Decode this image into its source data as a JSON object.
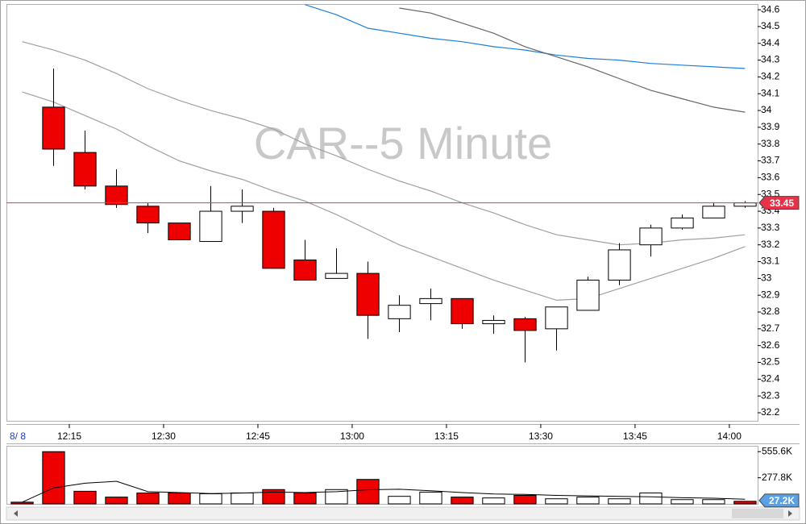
{
  "chart_data": {
    "type": "candlestick",
    "title": "CAR--5 Minute",
    "date_label": "8/ 8",
    "x": [
      725,
      730,
      735,
      740,
      745,
      750,
      755,
      760,
      765,
      770,
      775,
      780,
      785,
      790,
      795,
      800,
      805,
      810,
      815,
      820,
      825,
      830,
      835,
      840
    ],
    "xlim": [
      725,
      844.5
    ],
    "xticks": [
      {
        "value": 735,
        "label": "12:15"
      },
      {
        "value": 750,
        "label": "12:30"
      },
      {
        "value": 765,
        "label": "12:45"
      },
      {
        "value": 780,
        "label": "13:00"
      },
      {
        "value": 795,
        "label": "13:15"
      },
      {
        "value": 810,
        "label": "13:30"
      },
      {
        "value": 825,
        "label": "13:45"
      },
      {
        "value": 840,
        "label": "14:00"
      }
    ],
    "open": [
      null,
      34.02,
      33.75,
      33.55,
      33.43,
      33.33,
      33.22,
      33.4,
      33.4,
      33.11,
      33.0,
      33.03,
      32.76,
      32.85,
      32.88,
      32.73,
      32.76,
      32.7,
      32.81,
      32.99,
      33.2,
      33.3,
      33.36,
      33.43
    ],
    "high": [
      null,
      34.25,
      33.88,
      33.65,
      33.45,
      33.33,
      33.55,
      33.53,
      33.42,
      33.23,
      33.18,
      33.1,
      32.9,
      32.94,
      32.88,
      32.78,
      32.77,
      32.83,
      33.01,
      33.21,
      33.32,
      33.38,
      33.45,
      33.46
    ],
    "low": [
      null,
      33.67,
      33.53,
      33.42,
      33.27,
      33.23,
      33.22,
      33.33,
      33.06,
      32.99,
      33.0,
      32.64,
      32.68,
      32.75,
      32.7,
      32.67,
      32.5,
      32.57,
      32.81,
      32.96,
      33.13,
      33.29,
      33.36,
      33.42
    ],
    "close": [
      null,
      33.77,
      33.55,
      33.44,
      33.33,
      33.23,
      33.4,
      33.43,
      33.06,
      32.99,
      33.03,
      32.78,
      32.84,
      32.88,
      32.73,
      32.75,
      32.69,
      32.83,
      32.99,
      33.17,
      33.3,
      33.36,
      33.43,
      33.45
    ],
    "up_color": "#ffffff",
    "down_color": "#ee0000",
    "ylim": [
      32.152,
      34.634
    ],
    "yticks": [
      32.2,
      32.3,
      32.4,
      32.5,
      32.6,
      32.7,
      32.8,
      32.9,
      33,
      33.1,
      33.2,
      33.3,
      33.4,
      33.5,
      33.6,
      33.7,
      33.8,
      33.9,
      34,
      34.1,
      34.2,
      34.3,
      34.4,
      34.5,
      34.6
    ],
    "last_price": 33.45,
    "last_price_color": "#e8324a",
    "overlays": [
      {
        "color": "#1e7fd8",
        "values": [
          null,
          null,
          null,
          null,
          null,
          null,
          null,
          null,
          null,
          34.63,
          34.57,
          34.49,
          34.46,
          34.43,
          34.41,
          34.38,
          34.36,
          34.33,
          34.31,
          34.3,
          34.28,
          34.27,
          34.26,
          34.25
        ]
      },
      {
        "color": "#666666",
        "values": [
          null,
          null,
          null,
          null,
          null,
          null,
          null,
          null,
          null,
          null,
          null,
          null,
          34.61,
          34.58,
          34.52,
          34.46,
          34.38,
          34.32,
          34.26,
          34.19,
          34.12,
          34.07,
          34.02,
          33.99
        ]
      },
      {
        "color": "#a0a0a0",
        "values": [
          34.41,
          34.36,
          34.3,
          34.22,
          34.13,
          34.06,
          34.0,
          33.95,
          33.89,
          33.8,
          33.73,
          33.65,
          33.58,
          33.52,
          33.45,
          33.39,
          33.32,
          33.26,
          33.23,
          33.2,
          33.21,
          33.23,
          33.24,
          33.26
        ]
      },
      {
        "color": "#a0a0a0",
        "values": [
          34.11,
          34.05,
          33.97,
          33.89,
          33.79,
          33.7,
          33.64,
          33.59,
          33.52,
          33.46,
          33.38,
          33.29,
          33.2,
          33.13,
          33.06,
          32.99,
          32.93,
          32.87,
          32.88,
          32.94,
          33.0,
          33.06,
          33.12,
          33.19
        ]
      }
    ],
    "volume": {
      "type": "bar",
      "values": [
        18,
        555.6,
        134,
        72,
        116,
        116,
        107,
        116,
        152,
        116,
        152,
        260,
        80,
        125,
        72,
        63,
        90,
        54,
        72,
        54,
        116,
        45,
        45,
        27.2
      ],
      "colors": [
        "#ee0000",
        "#ee0000",
        "#ee0000",
        "#ee0000",
        "#ee0000",
        "#ee0000",
        "#ffffff",
        "#ffffff",
        "#ee0000",
        "#ee0000",
        "#ffffff",
        "#ee0000",
        "#ffffff",
        "#ffffff",
        "#ee0000",
        "#ffffff",
        "#ee0000",
        "#ffffff",
        "#ffffff",
        "#ffffff",
        "#ffffff",
        "#ffffff",
        "#ffffff",
        "#ee0000"
      ],
      "ylim": [
        0,
        618
      ],
      "yticks": [
        {
          "value": 277.8,
          "label": "277.8K"
        },
        {
          "value": 555.6,
          "label": "555.6K"
        }
      ],
      "last": {
        "value": 27.2,
        "label": "27.2K"
      },
      "ma_color": "#000000",
      "ma": [
        18,
        170,
        220,
        240,
        130,
        120,
        110,
        115,
        125,
        120,
        130,
        150,
        155,
        140,
        120,
        105,
        100,
        90,
        85,
        80,
        75,
        65,
        60,
        50
      ]
    }
  }
}
